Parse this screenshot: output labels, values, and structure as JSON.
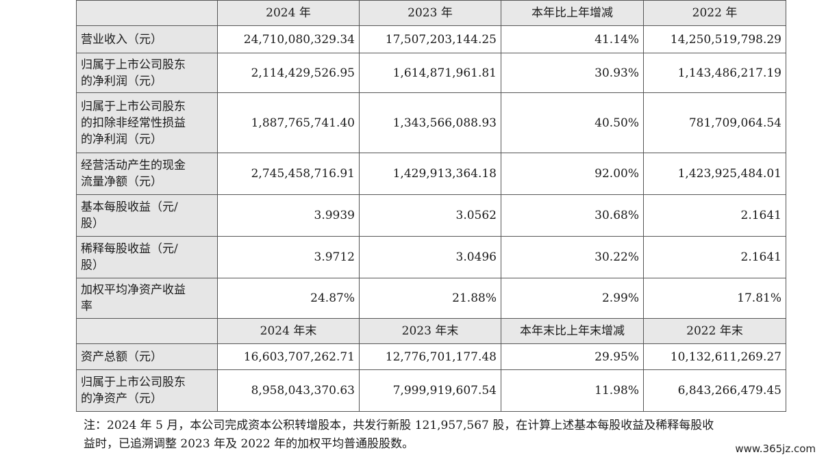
{
  "table": {
    "header1": [
      "",
      "2024 年",
      "2023 年",
      "本年比上年增减",
      "2022 年"
    ],
    "header2": [
      "",
      "2024 年末",
      "2023 年末",
      "本年末比上年末增减",
      "2022 年末"
    ],
    "rows": [
      {
        "label": [
          "营业收入（元）"
        ],
        "values": [
          "24,710,080,329.34",
          "17,507,203,144.25",
          "41.14%",
          "14,250,519,798.29"
        ]
      },
      {
        "label": [
          "归属于上市公司股东",
          "的净利润（元）"
        ],
        "values": [
          "2,114,429,526.95",
          "1,614,871,961.81",
          "30.93%",
          "1,143,486,217.19"
        ]
      },
      {
        "label": [
          "归属于上市公司股东",
          "的扣除非经常性损益",
          "的净利润（元）"
        ],
        "values": [
          "1,887,765,741.40",
          "1,343,566,088.93",
          "40.50%",
          "781,709,064.54"
        ]
      },
      {
        "label": [
          "经营活动产生的现金",
          "流量净额（元）"
        ],
        "values": [
          "2,745,458,716.91",
          "1,429,913,364.18",
          "92.00%",
          "1,423,925,484.01"
        ]
      },
      {
        "label": [
          "基本每股收益（元/",
          "股）"
        ],
        "values": [
          "3.9939",
          "3.0562",
          "30.68%",
          "2.1641"
        ]
      },
      {
        "label": [
          "稀释每股收益（元/",
          "股）"
        ],
        "values": [
          "3.9712",
          "3.0496",
          "30.22%",
          "2.1641"
        ]
      },
      {
        "label": [
          "加权平均净资产收益",
          "率"
        ],
        "values": [
          "24.87%",
          "21.88%",
          "2.99%",
          "17.81%"
        ]
      }
    ],
    "rows2": [
      {
        "label": [
          "资产总额（元）"
        ],
        "values": [
          "16,603,707,262.71",
          "12,776,701,177.48",
          "29.95%",
          "10,132,611,269.27"
        ]
      },
      {
        "label": [
          "归属于上市公司股东",
          "的净资产（元）"
        ],
        "values": [
          "8,958,043,370.63",
          "7,999,919,607.54",
          "11.98%",
          "6,843,266,479.45"
        ]
      }
    ]
  },
  "note": {
    "line1": "注：2024 年 5 月，本公司完成资本公积转增股本，共发行新股 121,957,567 股，在计算上述基本每股收益及稀释每股收",
    "line2": "益时，已追溯调整 2023 年及 2022 年的加权平均普通股股数。"
  },
  "watermark": "www.365jz.com"
}
